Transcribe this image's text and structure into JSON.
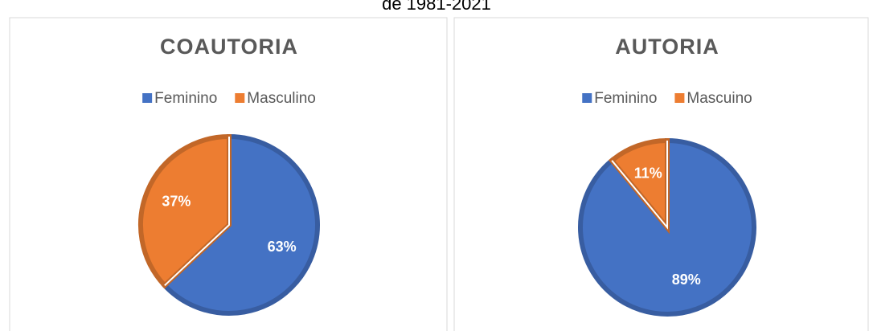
{
  "caption": "de 1981-2021",
  "chart_data": [
    {
      "type": "pie",
      "title": "COAUTORIA",
      "categories": [
        "Feminino",
        "Masculino"
      ],
      "values": [
        63,
        37
      ],
      "value_labels": [
        "63%",
        "37%"
      ],
      "colors": [
        "#4472c4",
        "#ed7d31"
      ]
    },
    {
      "type": "pie",
      "title": "AUTORIA",
      "categories": [
        "Feminino",
        "Mascuino"
      ],
      "values": [
        89,
        11
      ],
      "value_labels": [
        "89%",
        "11%"
      ],
      "colors": [
        "#4472c4",
        "#ed7d31"
      ]
    }
  ]
}
